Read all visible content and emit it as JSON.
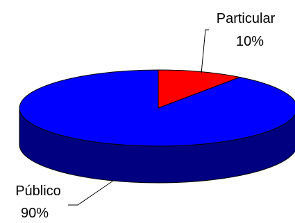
{
  "chart_data": {
    "type": "pie",
    "style": "3d",
    "title": "",
    "slices": [
      {
        "name": "Particular",
        "value": 10,
        "value_label": "10%",
        "color": "#ff0000",
        "side_color": "#800000"
      },
      {
        "name": "Público",
        "value": 90,
        "value_label": "90%",
        "color": "#0000ff",
        "side_color": "#000080"
      }
    ],
    "legend": "none",
    "outline_color": "#000000"
  }
}
